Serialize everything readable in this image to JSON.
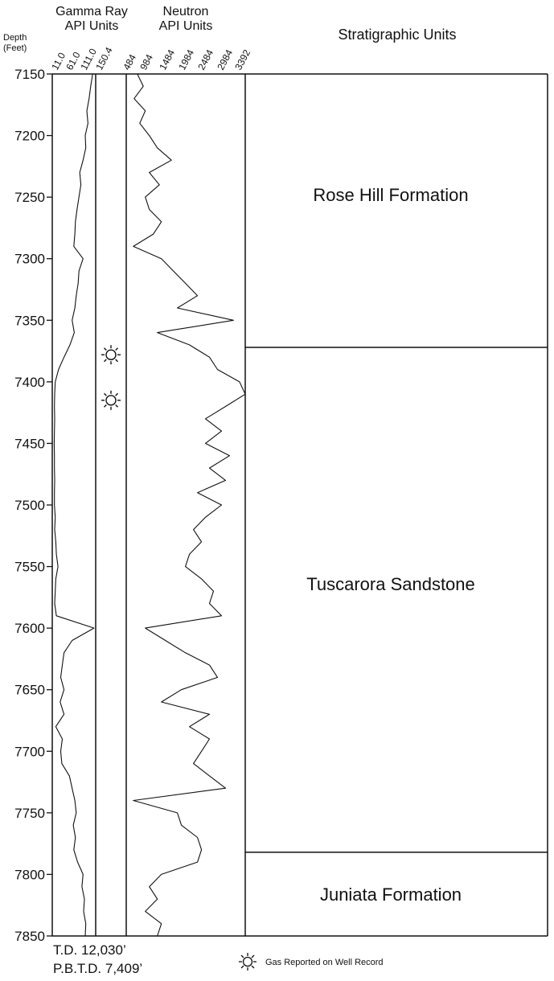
{
  "chart_data": {
    "type": "line",
    "depth_axis": {
      "label_line1": "Depth",
      "label_line2": "(Feet)",
      "range": [
        7150,
        7850
      ],
      "ticks": [
        7150,
        7200,
        7250,
        7300,
        7350,
        7400,
        7450,
        7500,
        7550,
        7600,
        7650,
        7700,
        7750,
        7800,
        7850
      ]
    },
    "tracks": {
      "gamma": {
        "title_line1": "Gamma Ray",
        "title_line2": "API Units",
        "tick_labels": [
          "11.0",
          "61.0",
          "111.0",
          "150.4"
        ]
      },
      "neutron": {
        "title_line1": "Neutron",
        "title_line2": "API Units",
        "tick_labels": [
          "484",
          "984",
          "1484",
          "1984",
          "2484",
          "2984",
          "3392"
        ]
      },
      "strat": {
        "title": "Stratigraphic Units",
        "units": [
          {
            "name": "Rose Hill Formation",
            "top": 7150,
            "base": 7372
          },
          {
            "name": "Tuscarora Sandstone",
            "top": 7372,
            "base": 7782
          },
          {
            "name": "Juniata Formation",
            "top": 7782,
            "base": 7850
          }
        ]
      }
    },
    "series": [
      {
        "key": "gamma",
        "depth": [
          7150,
          7160,
          7170,
          7180,
          7190,
          7200,
          7210,
          7220,
          7230,
          7240,
          7250,
          7260,
          7270,
          7280,
          7290,
          7300,
          7310,
          7320,
          7330,
          7340,
          7350,
          7360,
          7370,
          7380,
          7390,
          7400,
          7410,
          7420,
          7430,
          7440,
          7450,
          7460,
          7470,
          7480,
          7490,
          7500,
          7510,
          7520,
          7530,
          7540,
          7550,
          7560,
          7570,
          7580,
          7590,
          7600,
          7610,
          7620,
          7630,
          7640,
          7650,
          7660,
          7670,
          7680,
          7690,
          7700,
          7710,
          7720,
          7730,
          7740,
          7750,
          7760,
          7770,
          7780,
          7790,
          7800,
          7810,
          7820,
          7830,
          7840,
          7850
        ],
        "values": [
          145,
          138,
          132,
          124,
          128,
          118,
          120,
          110,
          98,
          102,
          95,
          88,
          82,
          80,
          76,
          110,
          95,
          92,
          85,
          80,
          70,
          78,
          62,
          40,
          20,
          8,
          6,
          5,
          6,
          5,
          4,
          5,
          5,
          6,
          5,
          5,
          8,
          6,
          10,
          12,
          18,
          10,
          8,
          6,
          12,
          150,
          70,
          40,
          34,
          28,
          40,
          26,
          40,
          10,
          34,
          28,
          32,
          60,
          70,
          80,
          85,
          74,
          82,
          76,
          90,
          110,
          106,
          115,
          112,
          120,
          118
        ]
      },
      {
        "key": "neutron",
        "depth": [
          7150,
          7160,
          7170,
          7180,
          7190,
          7200,
          7210,
          7220,
          7230,
          7240,
          7250,
          7260,
          7270,
          7280,
          7290,
          7300,
          7310,
          7320,
          7330,
          7340,
          7350,
          7360,
          7370,
          7380,
          7390,
          7400,
          7410,
          7420,
          7430,
          7440,
          7450,
          7460,
          7470,
          7480,
          7490,
          7500,
          7510,
          7520,
          7530,
          7540,
          7550,
          7560,
          7570,
          7580,
          7590,
          7600,
          7610,
          7620,
          7630,
          7640,
          7650,
          7660,
          7670,
          7680,
          7690,
          7700,
          7710,
          7720,
          7730,
          7740,
          7750,
          7760,
          7770,
          7780,
          7790,
          7800,
          7810,
          7820,
          7830,
          7840,
          7850
        ],
        "values": [
          700,
          850,
          620,
          900,
          760,
          1000,
          1200,
          1550,
          1000,
          1250,
          900,
          1000,
          1300,
          1100,
          600,
          1300,
          1600,
          1900,
          2200,
          1700,
          3100,
          1200,
          2000,
          2500,
          2700,
          3250,
          3392,
          2900,
          2400,
          2800,
          2400,
          3000,
          2500,
          2900,
          2200,
          2800,
          2400,
          2100,
          2300,
          2000,
          1900,
          2300,
          2600,
          2500,
          2800,
          900,
          1400,
          1900,
          2500,
          2700,
          1800,
          1300,
          2500,
          2000,
          2500,
          2300,
          2100,
          2500,
          2900,
          600,
          1700,
          1800,
          2200,
          2300,
          2200,
          1300,
          1000,
          1200,
          900,
          1300,
          1200
        ]
      }
    ],
    "gas_markers": [
      7378,
      7415
    ]
  },
  "footer": {
    "td": "T.D. 12,030’",
    "pbtd": "P.B.T.D. 7,409’",
    "gas_legend": "Gas Reported on Well Record"
  },
  "icons": {
    "gas": "gas-sun-icon"
  },
  "colors": {
    "ink": "#111111",
    "background": "#ffffff"
  }
}
